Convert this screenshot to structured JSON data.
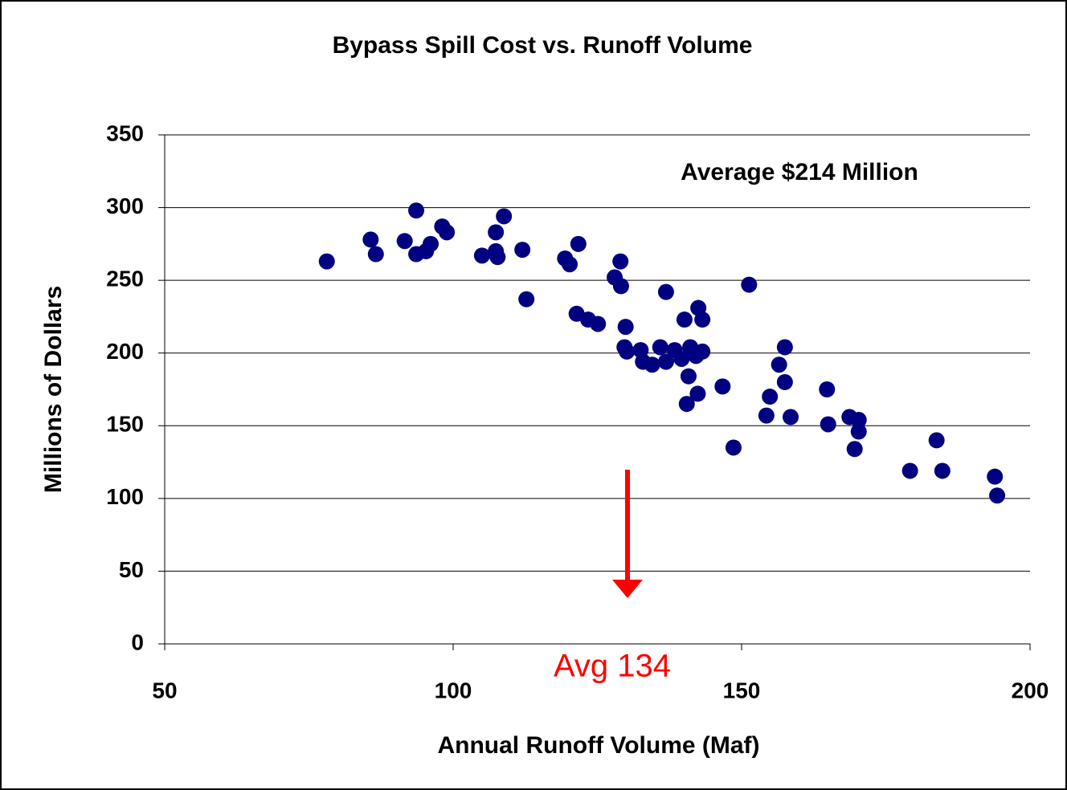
{
  "chart_data": {
    "type": "scatter",
    "title": "Bypass Spill Cost vs. Runoff Volume",
    "x_label": "Annual Runoff Volume (Maf)",
    "y_label": "Millions of Dollars",
    "annotations": [
      "Average $214 Million",
      "Avg 134"
    ],
    "xlim": [
      50,
      200
    ],
    "xticks": [
      50,
      100,
      150,
      200
    ],
    "ylim": [
      0,
      350
    ],
    "yticks": [
      0,
      50,
      100,
      150,
      200,
      250,
      300,
      350
    ],
    "grid": true,
    "series": [
      {
        "color": "#000080",
        "x": [
          78.1,
          85.7,
          86.6,
          91.6,
          93.6,
          93.6,
          95.3,
          96.1,
          98.1,
          98.9,
          105.0,
          107.4,
          107.4,
          107.7,
          108.8,
          112.0,
          112.7,
          119.4,
          120.2,
          121.7,
          121.4,
          123.4,
          125.1,
          128.0,
          129.0,
          129.1,
          129.9,
          129.7,
          130.1,
          132.5,
          132.9,
          134.5,
          135.9,
          136.9,
          136.9,
          138.4,
          139.6,
          140.1,
          140.8,
          140.5,
          141.1,
          142.1,
          142.4,
          142.5,
          143.2,
          143.2,
          146.7,
          148.6,
          151.3,
          154.3,
          154.9,
          156.5,
          157.5,
          157.5,
          158.5,
          164.8,
          165.0,
          168.7,
          170.3,
          170.3,
          169.6,
          179.2,
          183.8,
          184.8,
          193.9,
          194.3
        ],
        "values": [
          263,
          278,
          268,
          277,
          298,
          268,
          270,
          275,
          287,
          283,
          267,
          283,
          270,
          266,
          294,
          271,
          237,
          265,
          261,
          275,
          227,
          223,
          220,
          252,
          263,
          246,
          218,
          204,
          201,
          202,
          194,
          192,
          204,
          242,
          194,
          202,
          196,
          223,
          184,
          165,
          204,
          198,
          172,
          231,
          223,
          201,
          177,
          135,
          247,
          157,
          170,
          192,
          204,
          180,
          156,
          175,
          151,
          156,
          154,
          146,
          134,
          119,
          140,
          119,
          115,
          102
        ]
      }
    ]
  }
}
